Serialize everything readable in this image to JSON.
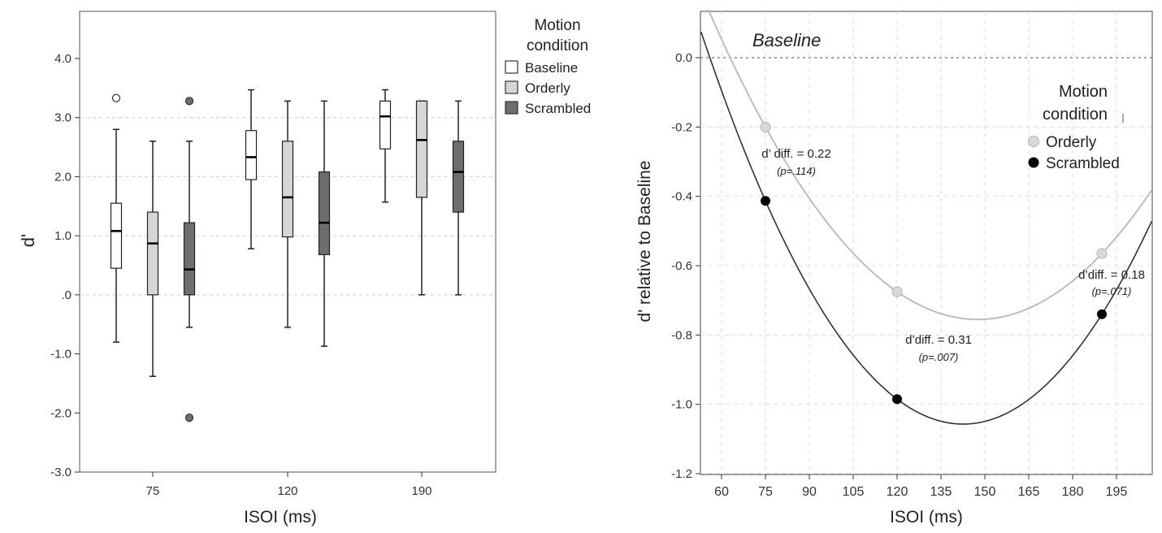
{
  "colors": {
    "baseline_fill": "#ffffff",
    "orderly_fill": "#d6d6d6",
    "scrambled_fill": "#6e6e6e",
    "orderly_line": "#bdbdbd",
    "scrambled_line": "#333333",
    "orderly_point": "#d9d9d9",
    "scrambled_point": "#000000",
    "grid": "#cfcfcf",
    "axis": "#333333"
  },
  "chart_data": [
    {
      "type": "box",
      "xlabel": "ISOI (ms)",
      "ylabel": "d'",
      "ylim": [
        -3.0,
        4.6
      ],
      "yticks": [
        4.0,
        3.0,
        2.0,
        1.0,
        0.0,
        -1.0,
        -2.0,
        -3.0
      ],
      "ytick_labels": [
        "4.0",
        "3.0",
        "2.0",
        "1.0",
        ".0",
        "-1.0",
        "-2.0",
        "-3.0"
      ],
      "grid": "dashed horizontal at 0, 1, 2, 3",
      "legend": {
        "title_line1": "Motion",
        "title_line2": "condition",
        "placement": "right",
        "entries": [
          "Baseline",
          "Orderly",
          "Scrambled"
        ]
      },
      "categories": [
        "75",
        "120",
        "190"
      ],
      "series": [
        {
          "name": "Baseline",
          "boxes": [
            {
              "min": -0.8,
              "q1": 0.45,
              "median": 1.08,
              "q3": 1.55,
              "max": 2.8,
              "outliers": [
                3.33
              ]
            },
            {
              "min": 0.78,
              "q1": 1.95,
              "median": 2.33,
              "q3": 2.78,
              "max": 3.47,
              "outliers": []
            },
            {
              "min": 1.57,
              "q1": 2.47,
              "median": 3.02,
              "q3": 3.28,
              "max": 3.47,
              "outliers": []
            }
          ]
        },
        {
          "name": "Orderly",
          "boxes": [
            {
              "min": -1.38,
              "q1": 0.0,
              "median": 0.87,
              "q3": 1.4,
              "max": 2.6,
              "outliers": []
            },
            {
              "min": -0.55,
              "q1": 0.98,
              "median": 1.65,
              "q3": 2.6,
              "max": 3.28,
              "outliers": []
            },
            {
              "min": 0.0,
              "q1": 1.65,
              "median": 2.62,
              "q3": 3.28,
              "max": 3.28,
              "outliers": []
            }
          ]
        },
        {
          "name": "Scrambled",
          "boxes": [
            {
              "min": -0.55,
              "q1": 0.0,
              "median": 0.43,
              "q3": 1.22,
              "max": 2.6,
              "outliers": [
                3.28,
                -2.08
              ]
            },
            {
              "min": -0.87,
              "q1": 0.68,
              "median": 1.22,
              "q3": 2.08,
              "max": 3.28,
              "outliers": []
            },
            {
              "min": 0.0,
              "q1": 1.4,
              "median": 2.08,
              "q3": 2.6,
              "max": 3.28,
              "outliers": []
            }
          ]
        }
      ]
    },
    {
      "type": "scatter",
      "xlabel": "ISOI (ms)",
      "ylabel": "d' relative to Baseline",
      "xlim": [
        52,
        210
      ],
      "ylim": [
        -1.2,
        0.14
      ],
      "xticks": [
        60,
        75,
        90,
        105,
        120,
        135,
        150,
        165,
        180,
        195
      ],
      "yticks": [
        0.0,
        -0.2,
        -0.4,
        -0.6,
        -0.8,
        -1.0,
        -1.2
      ],
      "ytick_labels": [
        "0.0",
        "-0.2",
        "-0.4",
        "-0.6",
        "-0.8",
        "-1.0",
        "-1.2"
      ],
      "grid": "dashed both axes",
      "baseline_label": "Baseline",
      "baseline_value": 0.0,
      "legend": {
        "title_line1": "Motion",
        "title_line2": "condition",
        "placement": "top-right",
        "entries": [
          "Orderly",
          "Scrambled"
        ]
      },
      "series": [
        {
          "name": "Orderly",
          "x": [
            75,
            120,
            190
          ],
          "y": [
            -0.2,
            -0.675,
            -0.565
          ]
        },
        {
          "name": "Scrambled",
          "x": [
            75,
            120,
            190
          ],
          "y": [
            -0.413,
            -0.985,
            -0.74
          ]
        }
      ],
      "annotations": [
        {
          "text": "d’ diff. = 0.22",
          "p": "(p=.114)",
          "x": 75
        },
        {
          "text": "d’diff. = 0.31",
          "p": "(p=.007)",
          "x": 120
        },
        {
          "text": "d’diff. = 0.18",
          "p": "(p=.071)",
          "x": 190
        }
      ]
    }
  ]
}
